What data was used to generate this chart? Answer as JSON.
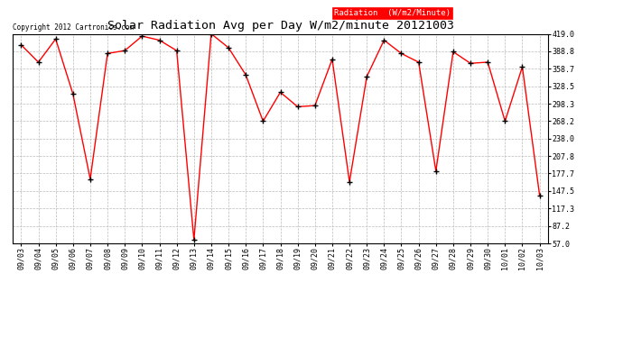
{
  "title": "Solar Radiation Avg per Day W/m2/minute 20121003",
  "copyright_text": "Copyright 2012 Cartronics.com",
  "legend_label": "Radiation  (W/m2/Minute)",
  "dates": [
    "09/03",
    "09/04",
    "09/05",
    "09/06",
    "09/07",
    "09/08",
    "09/09",
    "09/10",
    "09/11",
    "09/12",
    "09/13",
    "09/14",
    "09/15",
    "09/16",
    "09/17",
    "09/18",
    "09/19",
    "09/20",
    "09/21",
    "09/22",
    "09/23",
    "09/24",
    "09/25",
    "09/26",
    "09/27",
    "09/28",
    "09/29",
    "09/30",
    "10/01",
    "10/02",
    "10/03"
  ],
  "values": [
    400.0,
    370.0,
    410.0,
    315.0,
    168.0,
    385.0,
    390.0,
    415.0,
    408.0,
    390.0,
    63.0,
    419.0,
    395.0,
    348.0,
    268.0,
    318.0,
    293.0,
    295.0,
    375.0,
    163.0,
    345.0,
    408.0,
    385.0,
    370.0,
    182.0,
    388.0,
    368.0,
    370.0,
    268.0,
    362.0,
    140.0
  ],
  "line_color": "red",
  "marker_color": "black",
  "bg_color": "#ffffff",
  "grid_color": "#bbbbbb",
  "ylim_min": 57.0,
  "ylim_max": 419.0,
  "yticks": [
    57.0,
    87.2,
    117.3,
    147.5,
    177.7,
    207.8,
    238.0,
    268.2,
    298.3,
    328.5,
    358.7,
    388.8,
    419.0
  ],
  "title_fontsize": 9.5,
  "legend_fontsize": 6.5,
  "tick_fontsize": 6,
  "copyright_fontsize": 5.5
}
